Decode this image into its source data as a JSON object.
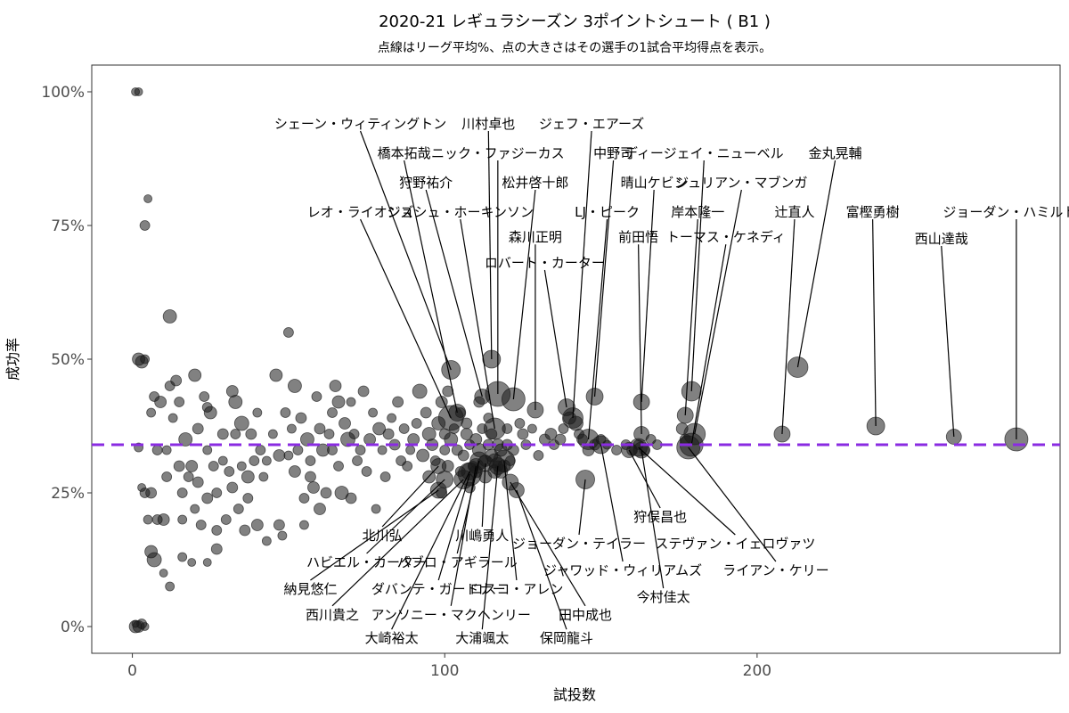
{
  "chart_data": {
    "type": "scatter",
    "title": "2020-21 レギュラシーズン 3ポイントシュート ( B1 )",
    "subtitle": "点線はリーグ平均%、点の大きさはその選手の1試合平均得点を表示。",
    "xlabel": "試投数",
    "ylabel": "成功率",
    "xlim": [
      -13,
      297
    ],
    "ylim": [
      -0.05,
      1.05
    ],
    "x_ticks": [
      {
        "value": 0,
        "label": "0"
      },
      {
        "value": 100,
        "label": "100"
      },
      {
        "value": 200,
        "label": "200"
      }
    ],
    "y_ticks": [
      {
        "value": 0,
        "label": "0%"
      },
      {
        "value": 0.25,
        "label": "25%"
      },
      {
        "value": 0.5,
        "label": "50%"
      },
      {
        "value": 0.75,
        "label": "75%"
      },
      {
        "value": 1.0,
        "label": "100%"
      }
    ],
    "league_average": 0.34,
    "grid": false,
    "colors": {
      "point": "#1a1a1a",
      "average_line": "#8a2be2",
      "panel_border": "#333333"
    },
    "labeled_points": [
      {
        "name": "ジョーダン・ハミルトン",
        "x": 283,
        "y": 0.35,
        "ppg": 20,
        "lx": 283,
        "ly": 0.775
      },
      {
        "name": "西山達哉",
        "x": 263,
        "y": 0.355,
        "ppg": 11,
        "lx": 259,
        "ly": 0.725
      },
      {
        "name": "富樫勇樹",
        "x": 238,
        "y": 0.375,
        "ppg": 14,
        "lx": 237,
        "ly": 0.775
      },
      {
        "name": "辻直人",
        "x": 208,
        "y": 0.36,
        "ppg": 12,
        "lx": 212,
        "ly": 0.775
      },
      {
        "name": "金丸晃輔",
        "x": 213,
        "y": 0.485,
        "ppg": 17,
        "lx": 225,
        "ly": 0.885
      },
      {
        "name": "ディージェイ・ニューベル",
        "x": 179,
        "y": 0.44,
        "ppg": 16,
        "lx": 183,
        "ly": 0.885
      },
      {
        "name": "ジュリアン・マブンガ",
        "x": 180,
        "y": 0.36,
        "ppg": 18,
        "lx": 195,
        "ly": 0.83
      },
      {
        "name": "岸本隆一",
        "x": 177,
        "y": 0.395,
        "ppg": 12,
        "lx": 181,
        "ly": 0.775
      },
      {
        "name": "トーマス・ケネディ",
        "x": 179,
        "y": 0.34,
        "ppg": 20,
        "lx": 190,
        "ly": 0.728
      },
      {
        "name": "晴山ケビン",
        "x": 163,
        "y": 0.42,
        "ppg": 12,
        "lx": 167,
        "ly": 0.83
      },
      {
        "name": "前田悟",
        "x": 163,
        "y": 0.36,
        "ppg": 11,
        "lx": 162,
        "ly": 0.728
      },
      {
        "name": "中野司",
        "x": 148,
        "y": 0.43,
        "ppg": 13,
        "lx": 154,
        "ly": 0.885
      },
      {
        "name": "LJ・ピーク",
        "x": 146,
        "y": 0.35,
        "ppg": 17,
        "lx": 152,
        "ly": 0.775
      },
      {
        "name": "ジェフ・エアーズ",
        "x": 141,
        "y": 0.39,
        "ppg": 17,
        "lx": 147,
        "ly": 0.94
      },
      {
        "name": "ロバート・カーター",
        "x": 139,
        "y": 0.41,
        "ppg": 13,
        "lx": 132,
        "ly": 0.68
      },
      {
        "name": "森川正明",
        "x": 129,
        "y": 0.405,
        "ppg": 12,
        "lx": 129,
        "ly": 0.728
      },
      {
        "name": "松井啓十郎",
        "x": 122,
        "y": 0.425,
        "ppg": 20,
        "lx": 129,
        "ly": 0.83
      },
      {
        "name": "ニック・ファジーカス",
        "x": 117,
        "y": 0.435,
        "ppg": 22,
        "lx": 117,
        "ly": 0.885
      },
      {
        "name": "川村卓也",
        "x": 115,
        "y": 0.5,
        "ppg": 14,
        "lx": 114,
        "ly": 0.94
      },
      {
        "name": "ジョシュ・ホーキンソン",
        "x": 116,
        "y": 0.37,
        "ppg": 18,
        "lx": 105,
        "ly": 0.775
      },
      {
        "name": "狩野祐介",
        "x": 112,
        "y": 0.43,
        "ppg": 11,
        "lx": 94,
        "ly": 0.83
      },
      {
        "name": "橋本拓哉",
        "x": 104,
        "y": 0.4,
        "ppg": 13,
        "lx": 87,
        "ly": 0.885
      },
      {
        "name": "シェーン・ウィティングトン",
        "x": 102,
        "y": 0.48,
        "ppg": 15,
        "lx": 73,
        "ly": 0.94
      },
      {
        "name": "レオ・ライオンズ",
        "x": 102,
        "y": 0.39,
        "ppg": 22,
        "lx": 73,
        "ly": 0.775
      },
      {
        "name": "北川弘",
        "x": 98,
        "y": 0.3,
        "ppg": 11,
        "lx": 80,
        "ly": 0.17
      },
      {
        "name": "ハビエル・カーター",
        "x": 100,
        "y": 0.275,
        "ppg": 13,
        "lx": 75,
        "ly": 0.12
      },
      {
        "name": "納見悠仁",
        "x": 98,
        "y": 0.255,
        "ppg": 12,
        "lx": 57,
        "ly": 0.07
      },
      {
        "name": "西川貴之",
        "x": 106,
        "y": 0.275,
        "ppg": 15,
        "lx": 64,
        "ly": 0.022
      },
      {
        "name": "大崎裕太",
        "x": 108,
        "y": 0.29,
        "ppg": 13,
        "lx": 83,
        "ly": -0.022
      },
      {
        "name": "ダバンテ・ガードナー",
        "x": 108,
        "y": 0.285,
        "ppg": 20,
        "lx": 98,
        "ly": 0.07
      },
      {
        "name": "アンソニー・マクヘンリー",
        "x": 110,
        "y": 0.3,
        "ppg": 11,
        "lx": 102,
        "ly": 0.022
      },
      {
        "name": "パブロ・アギラール",
        "x": 111,
        "y": 0.31,
        "ppg": 14,
        "lx": 104,
        "ly": 0.12
      },
      {
        "name": "川嶋勇人",
        "x": 113,
        "y": 0.305,
        "ppg": 12,
        "lx": 112,
        "ly": 0.17
      },
      {
        "name": "大浦颯太",
        "x": 117,
        "y": 0.3,
        "ppg": 13,
        "lx": 112,
        "ly": -0.022
      },
      {
        "name": "ロスコ・アレン",
        "x": 119,
        "y": 0.31,
        "ppg": 18,
        "lx": 123,
        "ly": 0.07
      },
      {
        "name": "田中成也",
        "x": 121,
        "y": 0.27,
        "ppg": 12,
        "lx": 145,
        "ly": 0.022
      },
      {
        "name": "保岡龍斗",
        "x": 123,
        "y": 0.255,
        "ppg": 11,
        "lx": 139,
        "ly": -0.022
      },
      {
        "name": "ジョーダン・テイラー",
        "x": 145,
        "y": 0.275,
        "ppg": 15,
        "lx": 143,
        "ly": 0.155
      },
      {
        "name": "ジャワッド・ウィリアムズ",
        "x": 150,
        "y": 0.34,
        "ppg": 14,
        "lx": 157,
        "ly": 0.105
      },
      {
        "name": "狩俣昌也",
        "x": 159,
        "y": 0.33,
        "ppg": 11,
        "lx": 169,
        "ly": 0.205
      },
      {
        "name": "ステヴァン・イェロヴァツ",
        "x": 162,
        "y": 0.335,
        "ppg": 14,
        "lx": 193,
        "ly": 0.155
      },
      {
        "name": "今村佳太",
        "x": 163,
        "y": 0.33,
        "ppg": 12,
        "lx": 170,
        "ly": 0.055
      },
      {
        "name": "ライアン・ケリー",
        "x": 178,
        "y": 0.335,
        "ppg": 20,
        "lx": 206,
        "ly": 0.105
      }
    ],
    "unlabeled_points": [
      [
        1,
        1.0,
        3
      ],
      [
        2,
        1.0,
        3
      ],
      [
        5,
        0.8,
        3
      ],
      [
        4,
        0.75,
        5
      ],
      [
        12,
        0.58,
        9
      ],
      [
        50,
        0.55,
        5
      ],
      [
        2,
        0.5,
        8
      ],
      [
        3,
        0.495,
        8
      ],
      [
        4,
        0.5,
        4
      ],
      [
        1,
        0.0,
        8
      ],
      [
        2,
        0.0,
        7
      ],
      [
        3,
        0.005,
        5
      ],
      [
        4,
        0.0,
        3
      ],
      [
        1,
        0.005,
        2
      ],
      [
        7,
        0.125,
        10
      ],
      [
        6,
        0.14,
        8
      ],
      [
        10,
        0.1,
        3
      ],
      [
        12,
        0.075,
        4
      ],
      [
        16,
        0.13,
        4
      ],
      [
        19,
        0.12,
        3
      ],
      [
        24,
        0.12,
        3
      ],
      [
        27,
        0.145,
        6
      ],
      [
        2,
        0.335,
        4
      ],
      [
        3,
        0.26,
        3
      ],
      [
        4,
        0.25,
        5
      ],
      [
        5,
        0.2,
        4
      ],
      [
        6,
        0.4,
        4
      ],
      [
        7,
        0.43,
        5
      ],
      [
        9,
        0.42,
        7
      ],
      [
        8,
        0.33,
        5
      ],
      [
        6,
        0.25,
        6
      ],
      [
        8,
        0.2,
        5
      ],
      [
        10,
        0.2,
        7
      ],
      [
        11,
        0.28,
        5
      ],
      [
        11,
        0.33,
        4
      ],
      [
        12,
        0.45,
        5
      ],
      [
        13,
        0.39,
        4
      ],
      [
        14,
        0.46,
        6
      ],
      [
        15,
        0.42,
        5
      ],
      [
        15,
        0.3,
        6
      ],
      [
        16,
        0.25,
        5
      ],
      [
        16,
        0.2,
        4
      ],
      [
        17,
        0.35,
        9
      ],
      [
        18,
        0.28,
        5
      ],
      [
        19,
        0.3,
        7
      ],
      [
        20,
        0.47,
        8
      ],
      [
        20,
        0.22,
        4
      ],
      [
        21,
        0.37,
        6
      ],
      [
        21,
        0.27,
        6
      ],
      [
        22,
        0.19,
        5
      ],
      [
        23,
        0.43,
        5
      ],
      [
        24,
        0.41,
        5
      ],
      [
        24,
        0.33,
        4
      ],
      [
        24,
        0.24,
        6
      ],
      [
        25,
        0.4,
        8
      ],
      [
        26,
        0.3,
        5
      ],
      [
        27,
        0.25,
        5
      ],
      [
        27,
        0.18,
        5
      ],
      [
        29,
        0.36,
        6
      ],
      [
        29,
        0.31,
        4
      ],
      [
        30,
        0.2,
        5
      ],
      [
        31,
        0.29,
        5
      ],
      [
        32,
        0.44,
        7
      ],
      [
        32,
        0.26,
        6
      ],
      [
        33,
        0.42,
        9
      ],
      [
        33,
        0.36,
        5
      ],
      [
        34,
        0.22,
        5
      ],
      [
        35,
        0.38,
        10
      ],
      [
        35,
        0.3,
        4
      ],
      [
        36,
        0.18,
        6
      ],
      [
        37,
        0.28,
        8
      ],
      [
        37,
        0.24,
        5
      ],
      [
        38,
        0.36,
        6
      ],
      [
        39,
        0.31,
        5
      ],
      [
        40,
        0.4,
        4
      ],
      [
        40,
        0.19,
        7
      ],
      [
        41,
        0.33,
        5
      ],
      [
        42,
        0.28,
        4
      ],
      [
        43,
        0.31,
        4
      ],
      [
        43,
        0.16,
        4
      ],
      [
        45,
        0.36,
        4
      ],
      [
        46,
        0.47,
        8
      ],
      [
        47,
        0.32,
        7
      ],
      [
        47,
        0.19,
        6
      ],
      [
        48,
        0.17,
        4
      ],
      [
        49,
        0.4,
        5
      ],
      [
        50,
        0.32,
        4
      ],
      [
        51,
        0.37,
        4
      ],
      [
        52,
        0.29,
        7
      ],
      [
        52,
        0.45,
        9
      ],
      [
        53,
        0.33,
        5
      ],
      [
        54,
        0.39,
        6
      ],
      [
        55,
        0.24,
        5
      ],
      [
        55,
        0.19,
        4
      ],
      [
        56,
        0.35,
        9
      ],
      [
        57,
        0.31,
        5
      ],
      [
        57,
        0.28,
        6
      ],
      [
        58,
        0.26,
        7
      ],
      [
        59,
        0.43,
        5
      ],
      [
        60,
        0.37,
        6
      ],
      [
        60,
        0.22,
        7
      ],
      [
        61,
        0.33,
        8
      ],
      [
        62,
        0.25,
        6
      ],
      [
        63,
        0.36,
        5
      ],
      [
        64,
        0.4,
        5
      ],
      [
        64,
        0.33,
        5
      ],
      [
        65,
        0.45,
        7
      ],
      [
        66,
        0.3,
        5
      ],
      [
        66,
        0.42,
        8
      ],
      [
        67,
        0.25,
        9
      ],
      [
        68,
        0.38,
        7
      ],
      [
        69,
        0.35,
        10
      ],
      [
        70,
        0.24,
        6
      ],
      [
        70,
        0.42,
        4
      ],
      [
        71,
        0.36,
        5
      ],
      [
        72,
        0.31,
        5
      ],
      [
        73,
        0.33,
        5
      ],
      [
        74,
        0.44,
        6
      ],
      [
        75,
        0.29,
        5
      ],
      [
        76,
        0.35,
        7
      ],
      [
        77,
        0.4,
        4
      ],
      [
        78,
        0.22,
        4
      ],
      [
        79,
        0.37,
        8
      ],
      [
        80,
        0.33,
        4
      ],
      [
        81,
        0.28,
        5
      ],
      [
        82,
        0.36,
        6
      ],
      [
        83,
        0.39,
        4
      ],
      [
        84,
        0.34,
        6
      ],
      [
        85,
        0.42,
        6
      ],
      [
        86,
        0.31,
        5
      ],
      [
        87,
        0.37,
        5
      ],
      [
        88,
        0.3,
        5
      ],
      [
        89,
        0.33,
        4
      ],
      [
        90,
        0.35,
        7
      ],
      [
        91,
        0.38,
        5
      ],
      [
        92,
        0.44,
        10
      ],
      [
        93,
        0.32,
        8
      ],
      [
        94,
        0.4,
        6
      ],
      [
        95,
        0.28,
        8
      ],
      [
        95,
        0.36,
        9
      ],
      [
        96,
        0.34,
        7
      ],
      [
        97,
        0.31,
        5
      ],
      [
        98,
        0.38,
        9
      ],
      [
        99,
        0.42,
        7
      ],
      [
        99,
        0.25,
        6
      ],
      [
        100,
        0.33,
        5
      ],
      [
        100,
        0.36,
        6
      ],
      [
        101,
        0.3,
        7
      ],
      [
        101,
        0.44,
        6
      ],
      [
        102,
        0.35,
        9
      ],
      [
        103,
        0.37,
        5
      ],
      [
        104,
        0.33,
        6
      ],
      [
        105,
        0.29,
        5
      ],
      [
        105,
        0.4,
        5
      ],
      [
        106,
        0.32,
        6
      ],
      [
        107,
        0.38,
        6
      ],
      [
        107,
        0.36,
        7
      ],
      [
        108,
        0.34,
        5
      ],
      [
        108,
        0.26,
        6
      ],
      [
        109,
        0.3,
        5
      ],
      [
        110,
        0.35,
        7
      ],
      [
        110,
        0.29,
        8
      ],
      [
        111,
        0.42,
        6
      ],
      [
        111,
        0.33,
        9
      ],
      [
        112,
        0.37,
        5
      ],
      [
        113,
        0.31,
        7
      ],
      [
        113,
        0.28,
        8
      ],
      [
        114,
        0.34,
        6
      ],
      [
        114,
        0.39,
        5
      ],
      [
        115,
        0.32,
        8
      ],
      [
        115,
        0.36,
        6
      ],
      [
        116,
        0.29,
        9
      ],
      [
        116,
        0.31,
        10
      ],
      [
        117,
        0.3,
        6
      ],
      [
        117,
        0.34,
        7
      ],
      [
        118,
        0.33,
        8
      ],
      [
        118,
        0.29,
        9
      ],
      [
        119,
        0.3,
        8
      ],
      [
        120,
        0.37,
        5
      ],
      [
        120,
        0.34,
        6
      ],
      [
        121,
        0.31,
        5
      ],
      [
        122,
        0.33,
        6
      ],
      [
        124,
        0.38,
        5
      ],
      [
        125,
        0.36,
        6
      ],
      [
        126,
        0.34,
        5
      ],
      [
        128,
        0.37,
        4
      ],
      [
        130,
        0.32,
        5
      ],
      [
        132,
        0.35,
        6
      ],
      [
        134,
        0.36,
        7
      ],
      [
        135,
        0.34,
        5
      ],
      [
        137,
        0.35,
        6
      ],
      [
        138,
        0.37,
        5
      ],
      [
        140,
        0.39,
        8
      ],
      [
        142,
        0.38,
        10
      ],
      [
        143,
        0.36,
        5
      ],
      [
        144,
        0.35,
        6
      ],
      [
        146,
        0.33,
        7
      ],
      [
        148,
        0.34,
        6
      ],
      [
        150,
        0.35,
        5
      ],
      [
        152,
        0.34,
        4
      ],
      [
        155,
        0.33,
        5
      ],
      [
        158,
        0.34,
        5
      ],
      [
        160,
        0.33,
        6
      ],
      [
        162,
        0.34,
        5
      ],
      [
        164,
        0.33,
        6
      ],
      [
        166,
        0.35,
        5
      ],
      [
        168,
        0.34,
        5
      ],
      [
        176,
        0.37,
        7
      ],
      [
        177,
        0.35,
        6
      ]
    ]
  }
}
